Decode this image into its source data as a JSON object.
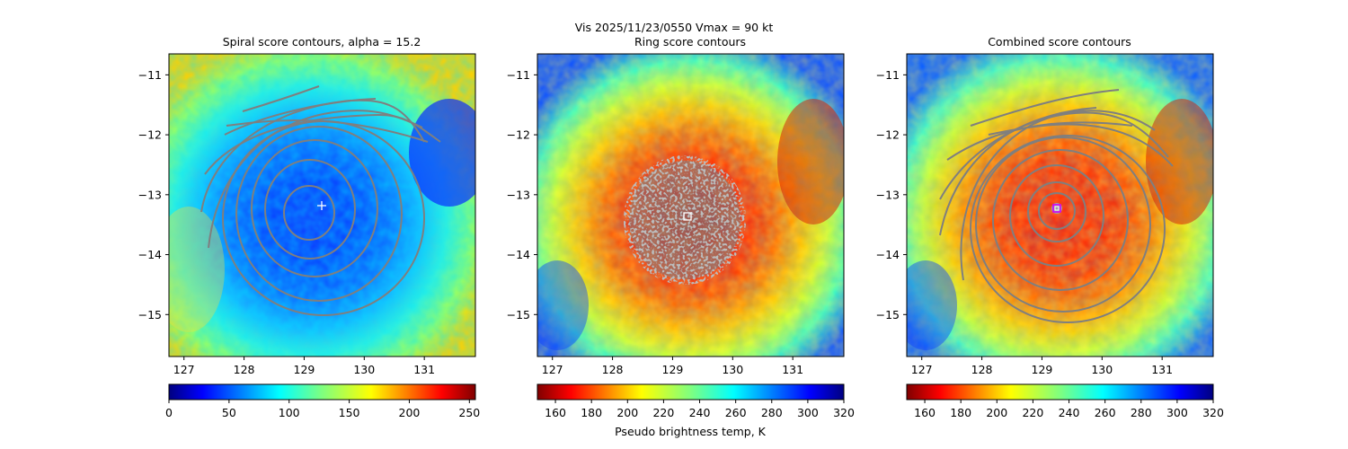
{
  "suptitle": "Vis  2025/11/23/0550    Vmax = 90 kt",
  "chart_data": [
    {
      "type": "heatmap",
      "title": "Spiral score contours, alpha = 15.2",
      "colormap": "jet_r",
      "x_ticks": [
        "127",
        "128",
        "129",
        "130",
        "131"
      ],
      "y_ticks": [
        "−11",
        "−12",
        "−13",
        "−14",
        "−15"
      ],
      "xlim": [
        126.75,
        131.85
      ],
      "ylim": [
        -15.7,
        -10.65
      ],
      "center_marker": {
        "symbol": "plus",
        "lon": 129.3,
        "lat": -13.2
      },
      "colorbar": {
        "ticks": [
          "0",
          "50",
          "100",
          "150",
          "200",
          "250"
        ],
        "range": [
          0,
          255
        ],
        "label": ""
      }
    },
    {
      "type": "heatmap",
      "title": "Ring score contours",
      "colormap": "jet",
      "x_ticks": [
        "127",
        "128",
        "129",
        "130",
        "131"
      ],
      "y_ticks": [
        "−11",
        "−12",
        "−13",
        "−14",
        "−15"
      ],
      "xlim": [
        126.75,
        131.85
      ],
      "ylim": [
        -15.7,
        -10.65
      ],
      "center_marker": {
        "symbol": "square",
        "lon": 129.25,
        "lat": -13.38
      },
      "colorbar": {
        "ticks": [
          "160",
          "180",
          "200",
          "220",
          "240",
          "260",
          "280",
          "300",
          "320"
        ],
        "range": [
          150,
          320
        ],
        "label": "Pseudo brightness temp, K"
      }
    },
    {
      "type": "heatmap",
      "title": "Combined score contours",
      "colormap": "jet",
      "x_ticks": [
        "127",
        "128",
        "129",
        "130",
        "131"
      ],
      "y_ticks": [
        "−11",
        "−12",
        "−13",
        "−14",
        "−15"
      ],
      "xlim": [
        126.75,
        131.85
      ],
      "ylim": [
        -15.7,
        -10.65
      ],
      "center_marker": {
        "symbol": "square",
        "lon": 129.2,
        "lat": -13.25
      },
      "colorbar": {
        "ticks": [
          "160",
          "180",
          "200",
          "220",
          "240",
          "260",
          "280",
          "300",
          "320"
        ],
        "range": [
          150,
          320
        ],
        "label": ""
      }
    }
  ]
}
